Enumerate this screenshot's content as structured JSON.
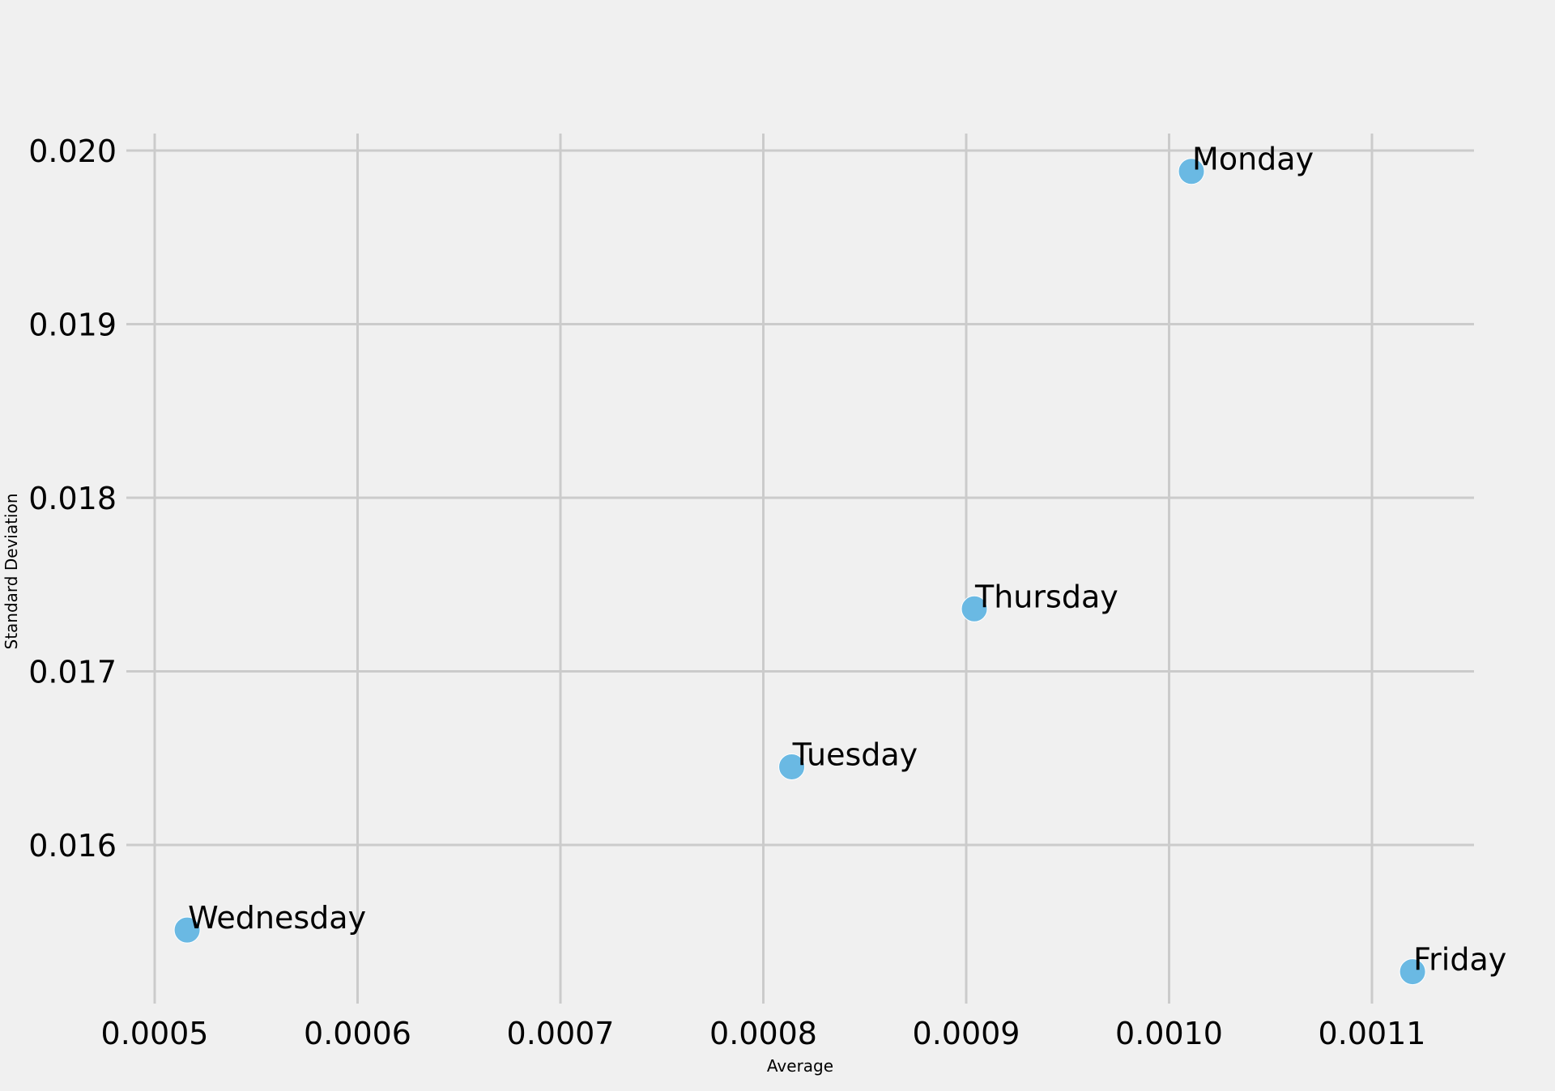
{
  "chart_data": {
    "type": "scatter",
    "title": "",
    "xlabel": "Average",
    "ylabel": "Standard Deviation",
    "xlim": [
      0.0005,
      0.00115
    ],
    "ylim": [
      0.0151,
      0.0201
    ],
    "xticks": [
      0.0005,
      0.0006,
      0.0007,
      0.0008,
      0.0009,
      0.001,
      0.0011
    ],
    "xtick_labels": [
      "0.0005",
      "0.0006",
      "0.0007",
      "0.0008",
      "0.0009",
      "0.0010",
      "0.0011"
    ],
    "yticks": [
      0.016,
      0.017,
      0.018,
      0.019,
      0.02
    ],
    "ytick_labels": [
      "0.016",
      "0.017",
      "0.018",
      "0.019",
      "0.020"
    ],
    "grid": true,
    "points": [
      {
        "label": "Monday",
        "x": 0.001011,
        "y": 0.01988
      },
      {
        "label": "Tuesday",
        "x": 0.000814,
        "y": 0.01645
      },
      {
        "label": "Wednesday",
        "x": 0.000516,
        "y": 0.01551
      },
      {
        "label": "Thursday",
        "x": 0.000904,
        "y": 0.01736
      },
      {
        "label": "Friday",
        "x": 0.00112,
        "y": 0.01527
      }
    ],
    "marker_color": "#6ab9e3",
    "grid_color": "#cbcbcb",
    "background_color": "#f0f0f0"
  }
}
